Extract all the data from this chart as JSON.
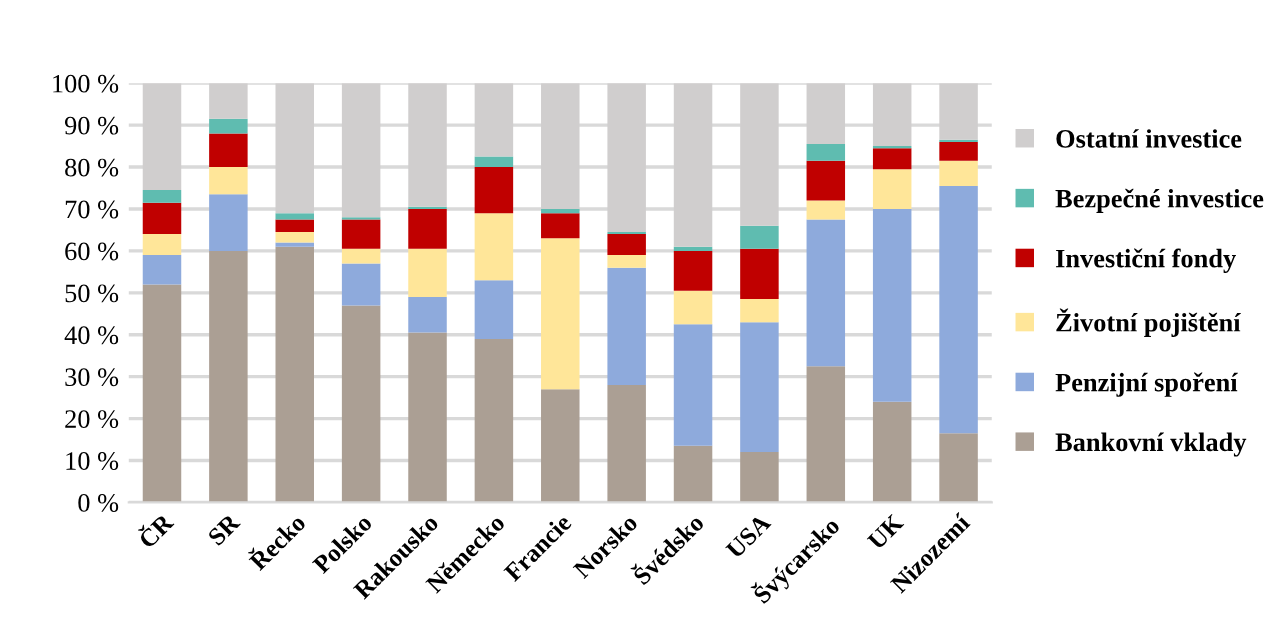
{
  "chart_data": {
    "type": "bar",
    "stacked": true,
    "legend": "right",
    "grid": "y",
    "categories": [
      "ČR",
      "SR",
      "Řecko",
      "Polsko",
      "Rakousko",
      "Německo",
      "Francie",
      "Norsko",
      "Švédsko",
      "USA",
      "Švýcarsko",
      "UK",
      "Nizozemí"
    ],
    "series": [
      {
        "name": "Bankovní vklady",
        "color": "#ab9f94",
        "values": [
          52,
          60,
          61,
          47,
          40.5,
          39,
          27,
          28,
          13.5,
          12,
          32.5,
          24,
          16.5
        ]
      },
      {
        "name": "Penzijní spoření",
        "color": "#8eaadc",
        "values": [
          7,
          13.5,
          1,
          10,
          8.5,
          14,
          0,
          28,
          29,
          31,
          35,
          46,
          59
        ]
      },
      {
        "name": "Životní pojištění",
        "color": "#ffe699",
        "values": [
          5,
          6.5,
          2.5,
          3.5,
          11.5,
          16,
          36,
          3,
          8,
          5.5,
          4.5,
          9.5,
          6
        ]
      },
      {
        "name": "Investiční fondy",
        "color": "#c00000",
        "values": [
          7.5,
          8,
          3,
          7,
          9.5,
          11,
          6,
          5,
          9.5,
          12,
          9.5,
          5,
          4.5
        ]
      },
      {
        "name": "Bezpečné investice",
        "color": "#5fbcb0",
        "values": [
          3,
          3.5,
          1.5,
          0.5,
          0.5,
          2.5,
          1,
          0.5,
          1,
          5.5,
          4,
          0.5,
          0.5
        ]
      },
      {
        "name": "Ostatní investice",
        "color": "#d0cece",
        "values": [
          25.5,
          8.5,
          31,
          32,
          29.5,
          17.5,
          30,
          35.5,
          39,
          34,
          14.5,
          15,
          13.5
        ]
      }
    ],
    "ylim": [
      0,
      100
    ],
    "yticks": [
      {
        "value": 0,
        "label": "0 %"
      },
      {
        "value": 10,
        "label": "10 %"
      },
      {
        "value": 20,
        "label": "20 %"
      },
      {
        "value": 30,
        "label": "30 %"
      },
      {
        "value": 40,
        "label": "40 %"
      },
      {
        "value": 50,
        "label": "50 %"
      },
      {
        "value": 60,
        "label": "60 %"
      },
      {
        "value": 70,
        "label": "70 %"
      },
      {
        "value": 80,
        "label": "80 %"
      },
      {
        "value": 90,
        "label": "90 %"
      },
      {
        "value": 100,
        "label": "100 %"
      }
    ]
  }
}
